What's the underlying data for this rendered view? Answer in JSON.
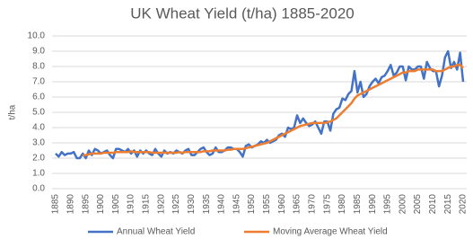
{
  "chart_data": {
    "type": "line",
    "title": "UK Wheat Yield (t/ha) 1885-2020",
    "y_label": "t/ha",
    "x": [
      1885,
      1886,
      1887,
      1888,
      1889,
      1890,
      1891,
      1892,
      1893,
      1894,
      1895,
      1896,
      1897,
      1898,
      1899,
      1900,
      1901,
      1902,
      1903,
      1904,
      1905,
      1906,
      1907,
      1908,
      1909,
      1910,
      1911,
      1912,
      1913,
      1914,
      1915,
      1916,
      1917,
      1918,
      1919,
      1920,
      1921,
      1922,
      1923,
      1924,
      1925,
      1926,
      1927,
      1928,
      1929,
      1930,
      1931,
      1932,
      1933,
      1934,
      1935,
      1936,
      1937,
      1938,
      1939,
      1940,
      1941,
      1942,
      1943,
      1944,
      1945,
      1946,
      1947,
      1948,
      1949,
      1950,
      1951,
      1952,
      1953,
      1954,
      1955,
      1956,
      1957,
      1958,
      1959,
      1960,
      1961,
      1962,
      1963,
      1964,
      1965,
      1966,
      1967,
      1968,
      1969,
      1970,
      1971,
      1972,
      1973,
      1974,
      1975,
      1976,
      1977,
      1978,
      1979,
      1980,
      1981,
      1982,
      1983,
      1984,
      1985,
      1986,
      1987,
      1988,
      1989,
      1990,
      1991,
      1992,
      1993,
      1994,
      1995,
      1996,
      1997,
      1998,
      1999,
      2000,
      2001,
      2002,
      2003,
      2004,
      2005,
      2006,
      2007,
      2008,
      2009,
      2010,
      2011,
      2012,
      2013,
      2014,
      2015,
      2016,
      2017,
      2018,
      2019,
      2020
    ],
    "series": [
      {
        "name": "Annual Wheat Yield",
        "color": "#4472c4",
        "values": [
          2.3,
          2.1,
          2.4,
          2.2,
          2.3,
          2.3,
          2.4,
          2.0,
          2.0,
          2.3,
          2.0,
          2.5,
          2.2,
          2.6,
          2.5,
          2.3,
          2.4,
          2.5,
          2.2,
          2.0,
          2.6,
          2.6,
          2.5,
          2.4,
          2.6,
          2.3,
          2.5,
          2.1,
          2.5,
          2.3,
          2.5,
          2.3,
          2.2,
          2.6,
          2.3,
          2.1,
          2.5,
          2.3,
          2.4,
          2.3,
          2.5,
          2.4,
          2.3,
          2.5,
          2.6,
          2.2,
          2.2,
          2.4,
          2.6,
          2.7,
          2.4,
          2.2,
          2.3,
          2.7,
          2.4,
          2.4,
          2.5,
          2.7,
          2.7,
          2.6,
          2.6,
          2.4,
          2.1,
          2.8,
          2.9,
          2.7,
          2.8,
          2.9,
          3.1,
          3.0,
          3.2,
          3.0,
          3.1,
          3.2,
          3.5,
          3.6,
          3.4,
          4.0,
          3.9,
          4.0,
          4.8,
          4.3,
          4.6,
          4.3,
          4.1,
          4.2,
          4.4,
          4.0,
          3.6,
          4.4,
          4.4,
          3.8,
          4.9,
          5.2,
          5.3,
          5.9,
          5.8,
          6.2,
          6.4,
          7.7,
          6.3,
          7.0,
          6.0,
          6.2,
          6.7,
          7.0,
          7.2,
          6.9,
          7.3,
          7.4,
          7.7,
          8.1,
          7.4,
          7.6,
          8.0,
          8.0,
          7.1,
          8.0,
          7.8,
          7.8,
          8.0,
          8.0,
          7.2,
          8.3,
          7.9,
          7.7,
          7.7,
          6.7,
          7.4,
          8.6,
          9.0,
          7.9,
          8.3,
          7.8,
          8.9,
          7.0
        ]
      },
      {
        "name": "Moving Average Wheat Yield",
        "color": "#ed7d31",
        "values": [
          null,
          null,
          null,
          null,
          null,
          null,
          null,
          null,
          null,
          2.2,
          2.2,
          2.25,
          2.3,
          2.3,
          2.3,
          2.3,
          2.35,
          2.35,
          2.35,
          2.35,
          2.4,
          2.4,
          2.4,
          2.4,
          2.4,
          2.45,
          2.4,
          2.4,
          2.4,
          2.4,
          2.4,
          2.4,
          2.35,
          2.35,
          2.35,
          2.35,
          2.35,
          2.35,
          2.35,
          2.35,
          2.35,
          2.4,
          2.35,
          2.4,
          2.4,
          2.4,
          2.4,
          2.4,
          2.4,
          2.45,
          2.45,
          2.45,
          2.5,
          2.5,
          2.5,
          2.5,
          2.5,
          2.55,
          2.55,
          2.6,
          2.6,
          2.6,
          2.6,
          2.65,
          2.7,
          2.75,
          2.8,
          2.85,
          2.9,
          2.95,
          3.0,
          3.1,
          3.2,
          3.3,
          3.4,
          3.5,
          3.6,
          3.7,
          3.8,
          3.9,
          4.0,
          4.1,
          4.15,
          4.2,
          4.25,
          4.3,
          4.3,
          4.3,
          4.3,
          4.3,
          4.35,
          4.4,
          4.5,
          4.6,
          4.8,
          5.0,
          5.2,
          5.4,
          5.6,
          5.9,
          6.1,
          6.2,
          6.3,
          6.4,
          6.5,
          6.6,
          6.7,
          6.8,
          6.9,
          7.0,
          7.1,
          7.2,
          7.3,
          7.4,
          7.5,
          7.6,
          7.6,
          7.7,
          7.7,
          7.7,
          7.8,
          7.8,
          7.8,
          7.8,
          7.8,
          7.8,
          7.7,
          7.7,
          7.7,
          7.8,
          7.9,
          8.0,
          8.0,
          8.1,
          8.1,
          7.9
        ]
      }
    ],
    "xlim": [
      1885,
      2020
    ],
    "xticks": [
      1885,
      1890,
      1895,
      1900,
      1905,
      1910,
      1915,
      1920,
      1925,
      1930,
      1935,
      1940,
      1945,
      1950,
      1955,
      1960,
      1965,
      1970,
      1975,
      1980,
      1985,
      1990,
      1995,
      2000,
      2005,
      2010,
      2015,
      2020
    ],
    "ylim": [
      0,
      10
    ],
    "yticks": [
      {
        "value": 0,
        "label": "0.0"
      },
      {
        "value": 1,
        "label": "1.0"
      },
      {
        "value": 2,
        "label": "2.0"
      },
      {
        "value": 3,
        "label": "3.0"
      },
      {
        "value": 4,
        "label": "4.0"
      },
      {
        "value": 5,
        "label": "5.0"
      },
      {
        "value": 6,
        "label": "6.0"
      },
      {
        "value": 7,
        "label": "7.0"
      },
      {
        "value": 8,
        "label": "8.0"
      },
      {
        "value": 9,
        "label": "9.0"
      },
      {
        "value": 10,
        "label": "10.0"
      }
    ],
    "grid": true,
    "legend": "bottom"
  }
}
